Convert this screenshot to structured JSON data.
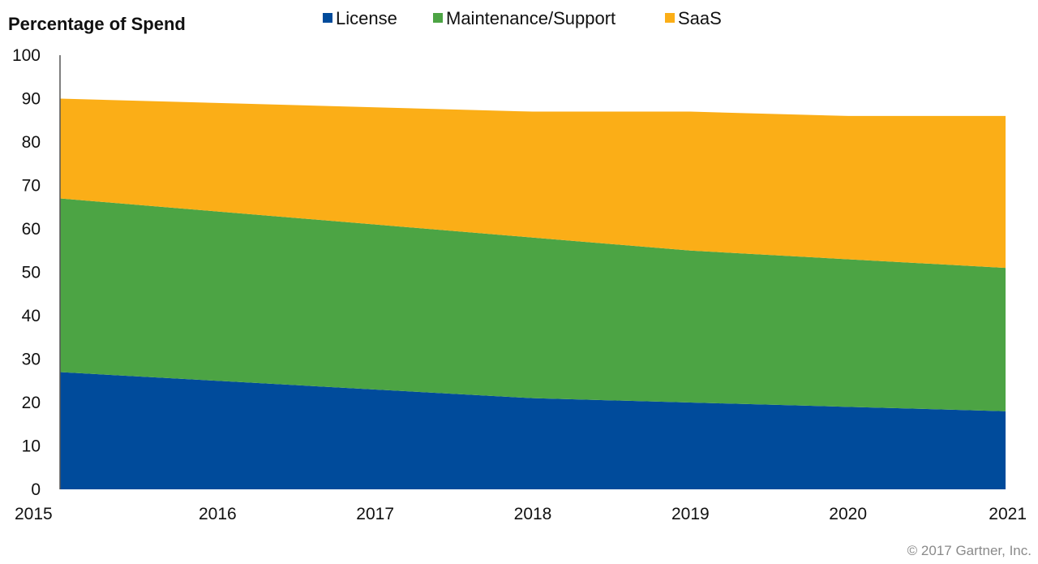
{
  "chart_data": {
    "type": "area",
    "stacked": true,
    "title": "Percentage of Spend",
    "x": [
      2015,
      2016,
      2017,
      2018,
      2019,
      2020,
      2021
    ],
    "ylim": [
      0,
      100
    ],
    "yticks": [
      0,
      10,
      20,
      30,
      40,
      50,
      60,
      70,
      80,
      90,
      100
    ],
    "grid": false,
    "legend_position": "top",
    "series": [
      {
        "name": "License",
        "color": "#004b9b",
        "values": [
          27,
          25,
          23,
          21,
          20,
          19,
          18
        ]
      },
      {
        "name": "Maintenance/Support",
        "color": "#4ca444",
        "values": [
          40,
          39,
          38,
          37,
          35,
          34,
          33
        ]
      },
      {
        "name": "SaaS",
        "color": "#fbae17",
        "values": [
          23,
          25,
          27,
          29,
          32,
          33,
          35
        ]
      }
    ],
    "credit": "© 2017 Gartner, Inc."
  }
}
